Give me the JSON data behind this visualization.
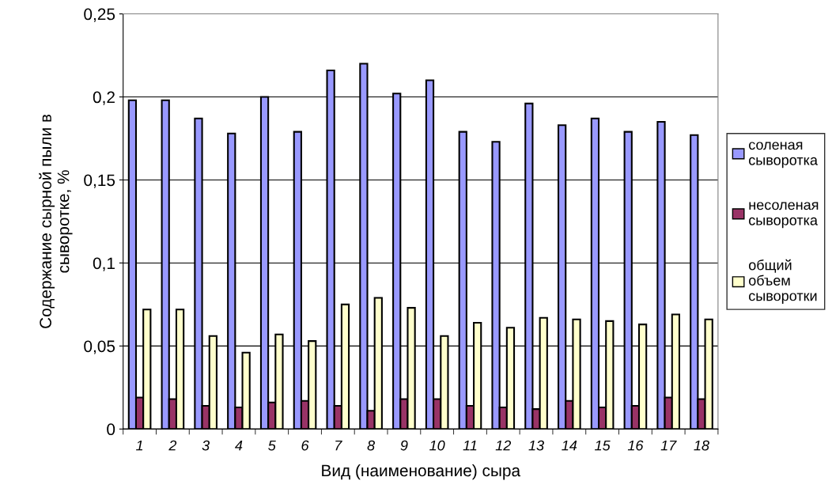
{
  "chart_data": {
    "type": "bar",
    "xlabel": "Вид (наименование) сыра",
    "ylabel": "Содержание сырной пыли в\nсыворотке, %",
    "categories": [
      "1",
      "2",
      "3",
      "4",
      "5",
      "6",
      "7",
      "8",
      "9",
      "10",
      "11",
      "12",
      "13",
      "14",
      "15",
      "16",
      "17",
      "18"
    ],
    "series": [
      {
        "name": "соленая\nсыворотка",
        "color": "#9999ff",
        "values": [
          0.198,
          0.198,
          0.187,
          0.178,
          0.2,
          0.179,
          0.216,
          0.22,
          0.202,
          0.21,
          0.179,
          0.173,
          0.196,
          0.183,
          0.187,
          0.179,
          0.185,
          0.177
        ]
      },
      {
        "name": "несоленая\nсыворотка",
        "color": "#993366",
        "values": [
          0.019,
          0.018,
          0.014,
          0.013,
          0.016,
          0.017,
          0.014,
          0.011,
          0.018,
          0.018,
          0.014,
          0.013,
          0.012,
          0.017,
          0.013,
          0.014,
          0.019,
          0.018
        ]
      },
      {
        "name": "общий\nобъем\nсыворотки",
        "color": "#ffffcc",
        "values": [
          0.072,
          0.072,
          0.056,
          0.046,
          0.057,
          0.053,
          0.075,
          0.079,
          0.073,
          0.056,
          0.064,
          0.061,
          0.067,
          0.066,
          0.065,
          0.063,
          0.069,
          0.066
        ]
      }
    ],
    "ylim": [
      0,
      0.25
    ],
    "yticks": [
      {
        "value": 0,
        "label": "0"
      },
      {
        "value": 0.05,
        "label": "0,05"
      },
      {
        "value": 0.1,
        "label": "0,1"
      },
      {
        "value": 0.15,
        "label": "0,15"
      },
      {
        "value": 0.2,
        "label": "0,2"
      },
      {
        "value": 0.25,
        "label": "0,25"
      }
    ],
    "grid": "y",
    "legend": "right"
  }
}
